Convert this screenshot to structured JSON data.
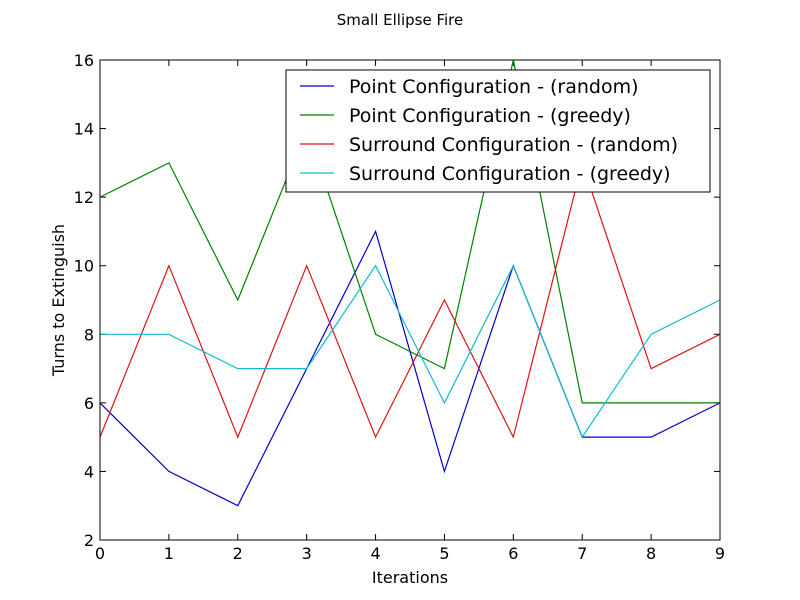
{
  "chart_data": {
    "type": "line",
    "title": "Small Ellipse Fire",
    "xlabel": "Iterations",
    "ylabel": "Turns to Extinguish",
    "xlim": [
      0,
      9
    ],
    "ylim": [
      2,
      16
    ],
    "xticks": [
      0,
      1,
      2,
      3,
      4,
      5,
      6,
      7,
      8,
      9
    ],
    "yticks": [
      2,
      4,
      6,
      8,
      10,
      12,
      14,
      16
    ],
    "grid": false,
    "legend_position": "top-right",
    "x": [
      0,
      1,
      2,
      3,
      4,
      5,
      6,
      7,
      8,
      9
    ],
    "series": [
      {
        "name": "Point Configuration -  (random)",
        "color": "#0000cc",
        "values": [
          6,
          4,
          3,
          7,
          11,
          4,
          10,
          5,
          5,
          6
        ]
      },
      {
        "name": "Point Configuration -  (greedy)",
        "color": "#008000",
        "values": [
          12,
          13,
          9,
          14,
          8,
          7,
          16,
          6,
          6,
          6
        ]
      },
      {
        "name": "Surround Configuration -  (random)",
        "color": "#dd1111",
        "values": [
          5,
          10,
          5,
          10,
          5,
          9,
          5,
          13,
          7,
          8
        ]
      },
      {
        "name": "Surround Configuration -  (greedy)",
        "color": "#11bbcc",
        "values": [
          8,
          8,
          7,
          7,
          10,
          6,
          10,
          5,
          8,
          9
        ]
      }
    ]
  }
}
